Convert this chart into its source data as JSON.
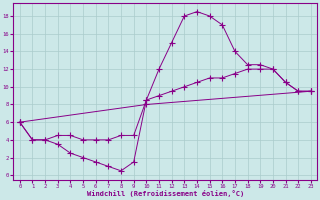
{
  "xlabel": "Windchill (Refroidissement éolien,°C)",
  "bg_color": "#cce8e8",
  "line_color": "#880088",
  "grid_color": "#aacccc",
  "xlim": [
    -0.5,
    23.5
  ],
  "ylim": [
    -0.5,
    19.5
  ],
  "xticks": [
    0,
    1,
    2,
    3,
    4,
    5,
    6,
    7,
    8,
    9,
    10,
    11,
    12,
    13,
    14,
    15,
    16,
    17,
    18,
    19,
    20,
    21,
    22,
    23
  ],
  "yticks": [
    0,
    2,
    4,
    6,
    8,
    10,
    12,
    14,
    16,
    18
  ],
  "line1_x": [
    0,
    1,
    2,
    3,
    4,
    5,
    6,
    7,
    8,
    9,
    10,
    11,
    12,
    13,
    14,
    15,
    16,
    17,
    18,
    19,
    20,
    21,
    22,
    23
  ],
  "line1_y": [
    6,
    4,
    4,
    3.5,
    2.5,
    2,
    1.5,
    1,
    0.5,
    1.5,
    8.5,
    12,
    15,
    18,
    18.5,
    18,
    17,
    14,
    12.5,
    12.5,
    12,
    10.5,
    9.5,
    9.5
  ],
  "line2_x": [
    0,
    1,
    2,
    3,
    4,
    5,
    6,
    7,
    8,
    9,
    10,
    11,
    12,
    13,
    14,
    15,
    16,
    17,
    18,
    19,
    20,
    21,
    22,
    23
  ],
  "line2_y": [
    6,
    4,
    4,
    4.5,
    4.5,
    4,
    4,
    4,
    4.5,
    4.5,
    8.5,
    9,
    9.5,
    10,
    10.5,
    11,
    11,
    11.5,
    12,
    12,
    12,
    10.5,
    9.5,
    9.5
  ],
  "line3_x": [
    0,
    10,
    23
  ],
  "line3_y": [
    6,
    8,
    9.5
  ],
  "figsize": [
    3.2,
    2.0
  ],
  "dpi": 100
}
